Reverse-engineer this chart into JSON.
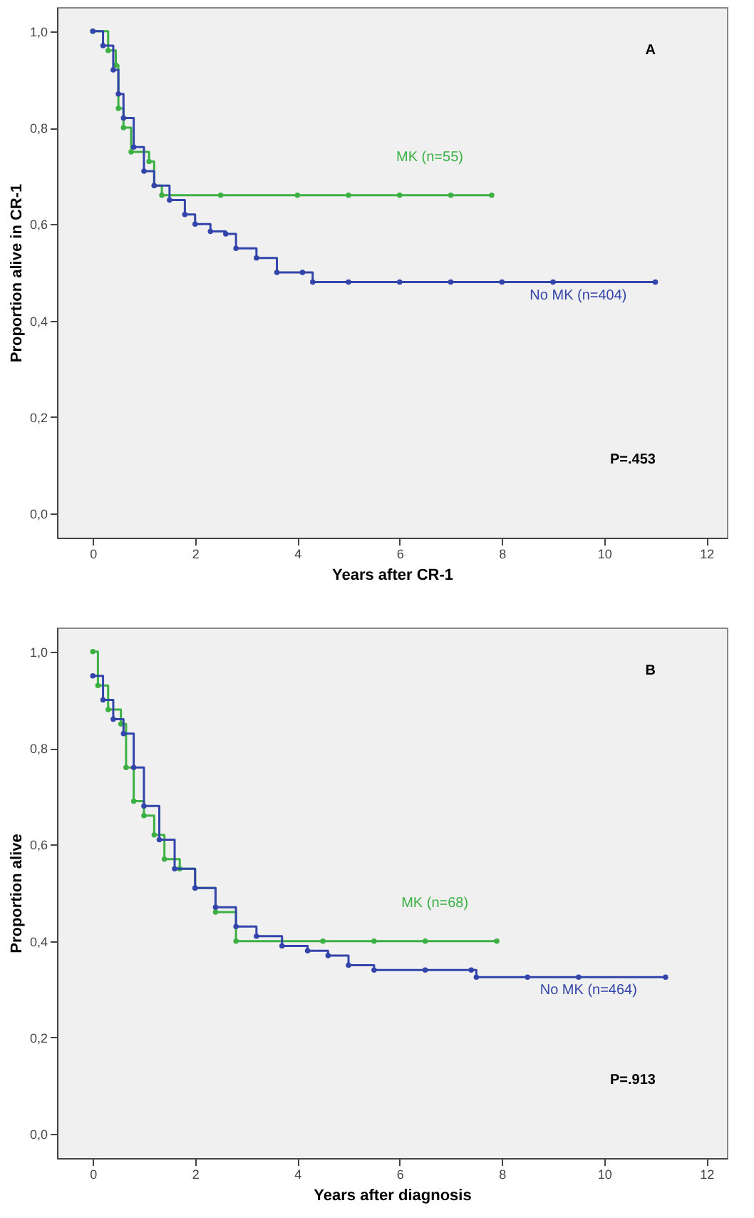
{
  "chart_data": [
    {
      "type": "step",
      "xlabel": "Years after CR-1",
      "ylabel": "Proportion alive in CR-1",
      "annotations": [
        "A",
        "P=.453"
      ],
      "xlim": [
        -0.7,
        12.4
      ],
      "xticks": [
        0,
        2,
        4,
        6,
        8,
        10,
        12
      ],
      "ylim": [
        -0.05,
        1.05
      ],
      "yticks": [
        {
          "value": 0,
          "label": "0,0"
        },
        {
          "value": 0.2,
          "label": "0,2"
        },
        {
          "value": 0.4,
          "label": "0,4"
        },
        {
          "value": 0.6,
          "label": "0,6"
        },
        {
          "value": 0.8,
          "label": "0,8"
        },
        {
          "value": 1,
          "label": "1,0"
        }
      ],
      "grid": false,
      "marker": "circle",
      "line_style": "solid",
      "series": [
        {
          "name": "MK (n=55)",
          "color": "#3cb043",
          "x": [
            0,
            0.3,
            0.45,
            0.5,
            0.6,
            0.75,
            1.1,
            1.2,
            1.35,
            2.5,
            4.0,
            5.0,
            6.0,
            7.0,
            7.8
          ],
          "values": [
            1.0,
            0.96,
            0.93,
            0.84,
            0.8,
            0.75,
            0.73,
            0.68,
            0.66,
            0.66,
            0.66,
            0.66,
            0.66,
            0.66,
            0.66
          ]
        },
        {
          "name": "No MK (n=404)",
          "color": "#3344aa",
          "x": [
            0,
            0.2,
            0.4,
            0.5,
            0.6,
            0.8,
            1.0,
            1.2,
            1.5,
            1.8,
            2.0,
            2.3,
            2.6,
            2.8,
            3.2,
            3.6,
            4.1,
            4.3,
            5.0,
            6.0,
            7.0,
            8.0,
            9.0,
            11.0
          ],
          "values": [
            1.0,
            0.97,
            0.92,
            0.87,
            0.82,
            0.76,
            0.71,
            0.68,
            0.65,
            0.62,
            0.6,
            0.585,
            0.58,
            0.55,
            0.53,
            0.5,
            0.5,
            0.48,
            0.48,
            0.48,
            0.48,
            0.48,
            0.48,
            0.48
          ]
        }
      ]
    },
    {
      "type": "step",
      "xlabel": "Years after diagnosis",
      "ylabel": "Proportion alive",
      "annotations": [
        "B",
        "P=.913"
      ],
      "xlim": [
        -0.7,
        12.4
      ],
      "xticks": [
        0,
        2,
        4,
        6,
        8,
        10,
        12
      ],
      "ylim": [
        -0.05,
        1.05
      ],
      "yticks": [
        {
          "value": 0,
          "label": "0,0"
        },
        {
          "value": 0.2,
          "label": "0,2"
        },
        {
          "value": 0.4,
          "label": "0,4"
        },
        {
          "value": 0.6,
          "label": "0,6"
        },
        {
          "value": 0.8,
          "label": "0,8"
        },
        {
          "value": 1,
          "label": "1,0"
        }
      ],
      "grid": false,
      "marker": "circle",
      "line_style": "solid",
      "series": [
        {
          "name": "MK (n=68)",
          "color": "#3cb043",
          "x": [
            0,
            0.1,
            0.3,
            0.55,
            0.65,
            0.8,
            1.0,
            1.2,
            1.4,
            1.7,
            2.0,
            2.4,
            2.8,
            4.5,
            5.5,
            6.5,
            7.9
          ],
          "values": [
            1.0,
            0.93,
            0.88,
            0.85,
            0.76,
            0.69,
            0.66,
            0.62,
            0.57,
            0.55,
            0.51,
            0.46,
            0.4,
            0.4,
            0.4,
            0.4,
            0.4
          ]
        },
        {
          "name": "No MK (n=464)",
          "color": "#3344aa",
          "x": [
            0,
            0.2,
            0.4,
            0.6,
            0.8,
            1.0,
            1.3,
            1.6,
            2.0,
            2.4,
            2.8,
            3.2,
            3.7,
            4.2,
            4.6,
            5.0,
            5.5,
            6.5,
            7.4,
            7.5,
            8.5,
            9.5,
            11.2
          ],
          "values": [
            0.95,
            0.9,
            0.86,
            0.83,
            0.76,
            0.68,
            0.61,
            0.55,
            0.51,
            0.47,
            0.43,
            0.41,
            0.39,
            0.38,
            0.37,
            0.35,
            0.34,
            0.34,
            0.34,
            0.325,
            0.325,
            0.325,
            0.325
          ]
        }
      ]
    }
  ]
}
